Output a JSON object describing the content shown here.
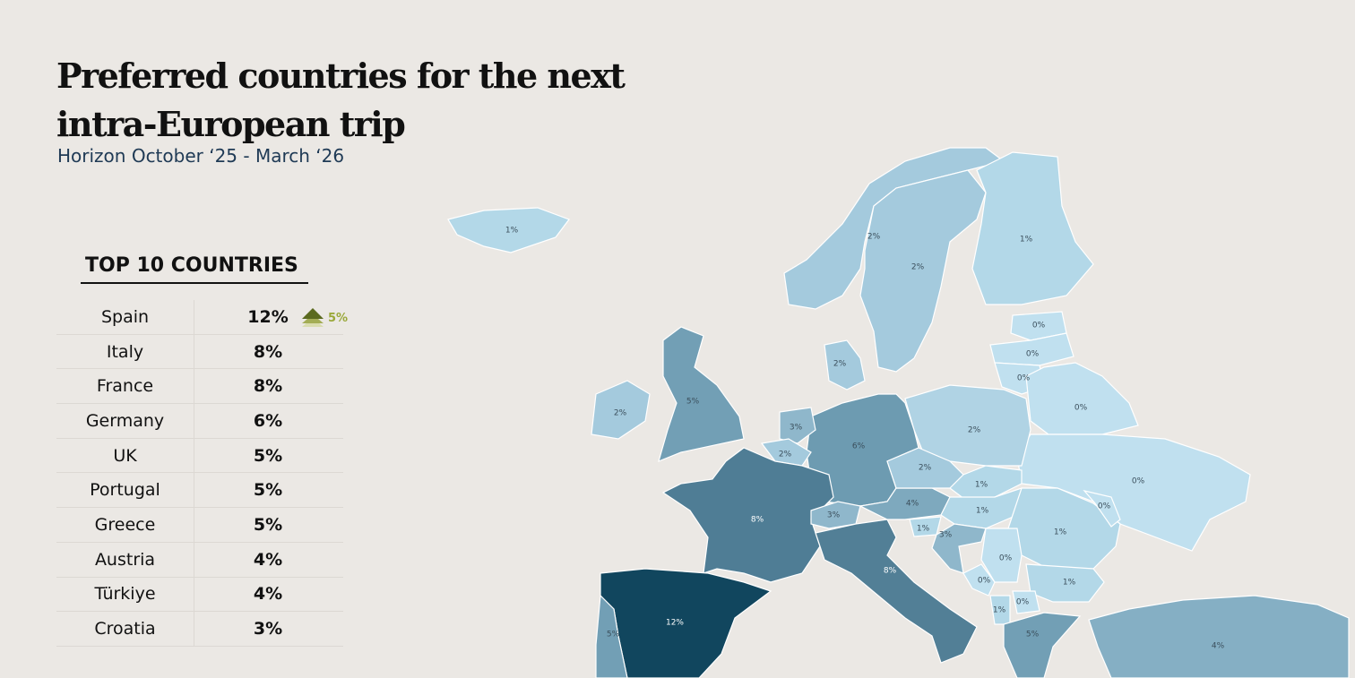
{
  "header": {
    "title": "Preferred countries for the next intra-European trip",
    "subtitle": "Horizon October ‘25 - March ‘26"
  },
  "table": {
    "title": "TOP 10 COUNTRIES",
    "rows": [
      {
        "country": "Spain",
        "share": "12%",
        "change": "5%"
      },
      {
        "country": "Italy",
        "share": "8%"
      },
      {
        "country": "France",
        "share": "8%"
      },
      {
        "country": "Germany",
        "share": "6%"
      },
      {
        "country": "UK",
        "share": "5%"
      },
      {
        "country": "Portugal",
        "share": "5%"
      },
      {
        "country": "Greece",
        "share": "5%"
      },
      {
        "country": "Austria",
        "share": "4%"
      },
      {
        "country": "Türkiye",
        "share": "4%"
      },
      {
        "country": "Croatia",
        "share": "3%"
      }
    ]
  },
  "map": {
    "regions": [
      {
        "label": "1%",
        "color": "#b3d8e8"
      },
      {
        "label": "2%",
        "color": "#a4cadd"
      },
      {
        "label": "2%",
        "color": "#a4cadd"
      },
      {
        "label": "1%",
        "color": "#b3d8e8"
      },
      {
        "label": "0%",
        "color": "#c0e0ef"
      },
      {
        "label": "0%",
        "color": "#c0e0ef"
      },
      {
        "label": "0%",
        "color": "#c0e0ef"
      },
      {
        "label": "0%",
        "color": "#c0e0ef"
      },
      {
        "label": "0%",
        "color": "#c0e0ef"
      },
      {
        "label": "2%",
        "color": "#b0d3e4"
      },
      {
        "label": "6%",
        "color": "#6d9bb1"
      },
      {
        "label": "2%",
        "color": "#a4cadd"
      },
      {
        "label": "5%",
        "color": "#729fb5"
      },
      {
        "label": "2%",
        "color": "#a4cadd"
      },
      {
        "label": "3%",
        "color": "#8fb7cb"
      },
      {
        "label": "2%",
        "color": "#a4cadd"
      },
      {
        "label": "8%",
        "color": "#4f7d95"
      },
      {
        "label": "12%",
        "color": "#11465e"
      },
      {
        "label": "5%",
        "color": "#729fb5"
      },
      {
        "label": "3%",
        "color": "#8fb7cb"
      },
      {
        "label": "8%",
        "color": "#527f96"
      },
      {
        "label": "4%",
        "color": "#7ea9be"
      },
      {
        "label": "2%",
        "color": "#a4cadd"
      },
      {
        "label": "1%",
        "color": "#b3d8e8"
      },
      {
        "label": "1%",
        "color": "#b3d8e8"
      },
      {
        "label": "1%",
        "color": "#b3d8e8"
      },
      {
        "label": "3%",
        "color": "#8fb7cb"
      },
      {
        "label": "1%",
        "color": "#b3d8e8"
      },
      {
        "label": "0%",
        "color": "#c0e0ef"
      },
      {
        "label": "0%",
        "color": "#c0e0ef"
      },
      {
        "label": "1%",
        "color": "#b3d8e8"
      },
      {
        "label": "0%",
        "color": "#c0e0ef"
      },
      {
        "label": "0%",
        "color": "#c0e0ef"
      },
      {
        "label": "1%",
        "color": "#b3d8e8"
      },
      {
        "label": "5%",
        "color": "#729fb5"
      },
      {
        "label": "4%",
        "color": "#85afc4"
      }
    ]
  }
}
